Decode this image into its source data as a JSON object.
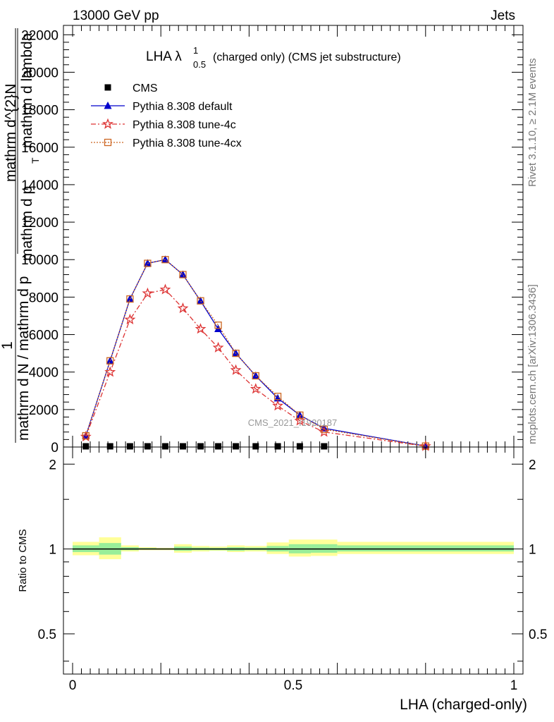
{
  "header": {
    "energy_label": "13000 GeV pp",
    "process_label": "Jets"
  },
  "side_labels": {
    "rivet": "Rivet 3.1.10, ≥ 2.1M events",
    "mcplots": "mcplots.cern.ch [arXiv:1306.3436]"
  },
  "watermark": "CMS_2021_I1920187",
  "chart_data": [
    {
      "type": "line",
      "title": "LHA λ¹₀.₅ (charged only) (CMS jet substructure)",
      "title_main": "LHA λ",
      "title_sup": "1",
      "title_sub": "0.5",
      "title_rest": "(charged only) (CMS jet substructure)",
      "ylabel_parts": [
        "1",
        "mathrm d N / mathrm d p_T mathrm d lambda",
        "mathrm d^2N",
        "mathrm d p_T mathrm d lambda"
      ],
      "ylabel_line1": "1",
      "ylabel_line2": "mathrm d N / mathrm d p",
      "ylabel_line3": "mathrm d^{2}N",
      "ylabel_line4": "mathrm d p",
      "ylabel_line5": "T",
      "ylabel_line6": "mathrm d lambda",
      "xlim": [
        0,
        1
      ],
      "ylim": [
        0,
        22500
      ],
      "yticks": [
        0,
        2000,
        4000,
        6000,
        8000,
        10000,
        12000,
        14000,
        16000,
        18000,
        20000,
        22000
      ],
      "ytick_labels": [
        "0",
        "2000",
        "4000",
        "6000",
        "8000",
        "10000",
        "12000",
        "14000",
        "16000",
        "18000",
        "20000",
        "22000"
      ],
      "legend_position": "top-left",
      "series": [
        {
          "name": "CMS",
          "color": "#000000",
          "marker": "square",
          "x": [
            0.03,
            0.085,
            0.13,
            0.17,
            0.21,
            0.25,
            0.29,
            0.33,
            0.37,
            0.415,
            0.465,
            0.515,
            0.57
          ],
          "values": [
            5,
            5,
            5,
            5,
            5,
            5,
            5,
            5,
            5,
            5,
            5,
            5,
            5
          ]
        },
        {
          "name": "Pythia 8.308 default",
          "color": "#0000cc",
          "marker": "triangle",
          "x": [
            0.03,
            0.085,
            0.13,
            0.17,
            0.21,
            0.25,
            0.29,
            0.33,
            0.37,
            0.415,
            0.465,
            0.515,
            0.57,
            0.8
          ],
          "values": [
            600,
            4600,
            7900,
            9800,
            10000,
            9200,
            7800,
            6300,
            5000,
            3800,
            2600,
            1700,
            1000,
            50
          ]
        },
        {
          "name": "Pythia 8.308 tune-4c",
          "color": "#dd3333",
          "marker": "star",
          "x": [
            0.03,
            0.085,
            0.13,
            0.17,
            0.21,
            0.25,
            0.29,
            0.33,
            0.37,
            0.415,
            0.465,
            0.515,
            0.57,
            0.8
          ],
          "values": [
            550,
            4000,
            6800,
            8200,
            8400,
            7400,
            6300,
            5300,
            4100,
            3100,
            2200,
            1400,
            800,
            40
          ]
        },
        {
          "name": "Pythia 8.308 tune-4cx",
          "color": "#cc6622",
          "marker": "open-square",
          "x": [
            0.03,
            0.085,
            0.13,
            0.17,
            0.21,
            0.25,
            0.29,
            0.33,
            0.37,
            0.415,
            0.465,
            0.515,
            0.57,
            0.8
          ],
          "values": [
            600,
            4600,
            7900,
            9800,
            10000,
            9200,
            7800,
            6500,
            5000,
            3800,
            2700,
            1700,
            950,
            50
          ]
        }
      ]
    },
    {
      "type": "area",
      "ylabel": "Ratio to CMS",
      "xlabel": "LHA (charged-only)",
      "xlim": [
        0,
        1
      ],
      "ylim": [
        0.36,
        2.3
      ],
      "y_scale": "log",
      "yticks": [
        0.5,
        1,
        2
      ],
      "ytick_labels": [
        "0.5",
        "1",
        "2"
      ],
      "xticks": [
        0,
        0.5,
        1
      ],
      "xtick_labels": [
        "0",
        "0.5",
        "1"
      ],
      "reference_line": 1,
      "band_edges": [
        0.0,
        0.06,
        0.11,
        0.15,
        0.19,
        0.23,
        0.27,
        0.31,
        0.35,
        0.39,
        0.44,
        0.49,
        0.54,
        0.6,
        1.0
      ],
      "band_yellow_lo": [
        0.95,
        0.92,
        0.98,
        0.99,
        0.99,
        0.97,
        0.98,
        0.985,
        0.975,
        0.98,
        0.96,
        0.94,
        0.945,
        0.96
      ],
      "band_yellow_hi": [
        1.06,
        1.1,
        1.03,
        1.015,
        1.01,
        1.04,
        1.025,
        1.02,
        1.03,
        1.025,
        1.055,
        1.08,
        1.08,
        1.06
      ],
      "band_green_lo": [
        0.975,
        0.955,
        0.99,
        0.995,
        0.995,
        0.985,
        0.99,
        0.99,
        0.985,
        0.99,
        0.98,
        0.965,
        0.97,
        0.98
      ],
      "band_green_hi": [
        1.03,
        1.05,
        1.015,
        1.008,
        1.005,
        1.02,
        1.012,
        1.01,
        1.015,
        1.012,
        1.025,
        1.04,
        1.04,
        1.03
      ],
      "band_colors": {
        "yellow": "#ffff99",
        "green": "#99ee99"
      }
    }
  ]
}
